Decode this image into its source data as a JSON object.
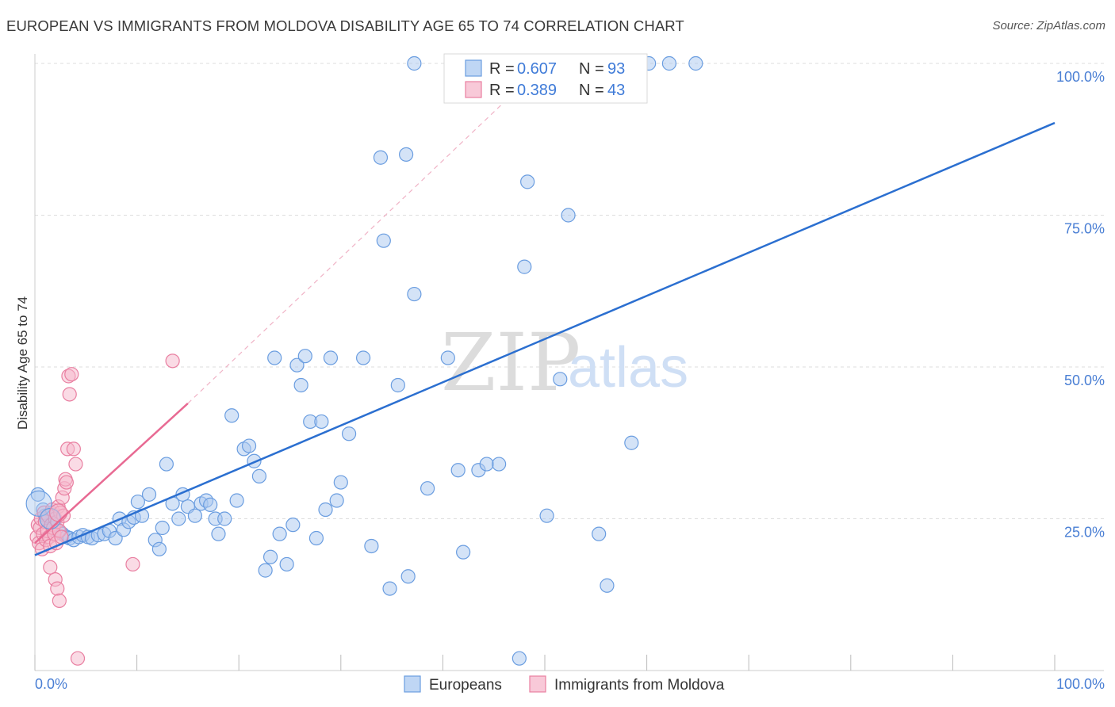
{
  "header": {
    "title": "EUROPEAN VS IMMIGRANTS FROM MOLDOVA DISABILITY AGE 65 TO 74 CORRELATION CHART",
    "source": "Source: ZipAtlas.com"
  },
  "watermark": {
    "zip": "ZIP",
    "atlas": "atlas"
  },
  "colors": {
    "blue_fill": "#a9c8f0",
    "blue_stroke": "#6a9de0",
    "blue_line": "#2b6fd0",
    "pink_fill": "#f6b7cb",
    "pink_stroke": "#e97fa1",
    "pink_line": "#e86a93",
    "tick_text": "#4a7fd4",
    "grid": "#dddddd"
  },
  "legend": {
    "rows": [
      {
        "r_label": "R =",
        "r_value": "0.607",
        "n_label": "N =",
        "n_value": "93"
      },
      {
        "r_label": "R =",
        "r_value": "0.389",
        "n_label": "N =",
        "n_value": "43"
      }
    ]
  },
  "chart_data": {
    "type": "scatter",
    "title": "EUROPEAN VS IMMIGRANTS FROM MOLDOVA DISABILITY AGE 65 TO 74 CORRELATION CHART",
    "xlabel": "",
    "ylabel": "Disability Age 65 to 74",
    "xlim": [
      0,
      100
    ],
    "ylim": [
      0,
      100
    ],
    "x_tick_labels": [
      "0.0%",
      "100.0%"
    ],
    "y_ticks": [
      {
        "value": 25,
        "label": "25.0%"
      },
      {
        "value": 50,
        "label": "50.0%"
      },
      {
        "value": 75,
        "label": "75.0%"
      },
      {
        "value": 100,
        "label": "100.0%"
      }
    ],
    "grid": true,
    "legend_position": "top-center",
    "series": [
      {
        "name": "Europeans",
        "color": "#6a9de0",
        "r": 0.607,
        "n": 93,
        "trendline": {
          "x": [
            0,
            100
          ],
          "y": [
            19.0,
            90.2
          ]
        },
        "points": [
          [
            0.3,
            29.0
          ],
          [
            0.8,
            26.5
          ],
          [
            1.0,
            25.5
          ],
          [
            1.3,
            24.8
          ],
          [
            1.6,
            26.0
          ],
          [
            1.9,
            24.0
          ],
          [
            2.3,
            23.0
          ],
          [
            2.7,
            22.5
          ],
          [
            3.1,
            22.0
          ],
          [
            3.4,
            21.8
          ],
          [
            3.8,
            21.5
          ],
          [
            4.3,
            22.0
          ],
          [
            4.7,
            22.3
          ],
          [
            5.2,
            22.0
          ],
          [
            5.6,
            21.8
          ],
          [
            6.2,
            22.3
          ],
          [
            6.8,
            22.5
          ],
          [
            7.3,
            23.0
          ],
          [
            7.9,
            21.8
          ],
          [
            8.3,
            25.0
          ],
          [
            8.7,
            23.2
          ],
          [
            9.2,
            24.5
          ],
          [
            9.7,
            25.2
          ],
          [
            10.1,
            27.8
          ],
          [
            10.5,
            25.5
          ],
          [
            11.2,
            29.0
          ],
          [
            11.8,
            21.5
          ],
          [
            12.2,
            20.0
          ],
          [
            12.5,
            23.5
          ],
          [
            12.9,
            34.0
          ],
          [
            13.5,
            27.5
          ],
          [
            14.1,
            25.0
          ],
          [
            14.5,
            29.0
          ],
          [
            15.0,
            27.0
          ],
          [
            15.7,
            25.5
          ],
          [
            16.3,
            27.5
          ],
          [
            16.8,
            28.0
          ],
          [
            17.2,
            27.3
          ],
          [
            17.7,
            25.0
          ],
          [
            18.0,
            22.5
          ],
          [
            18.6,
            25.0
          ],
          [
            19.3,
            42.0
          ],
          [
            19.8,
            28.0
          ],
          [
            20.5,
            36.5
          ],
          [
            21.0,
            37.0
          ],
          [
            21.5,
            34.5
          ],
          [
            22.0,
            32.0
          ],
          [
            22.6,
            16.5
          ],
          [
            23.1,
            18.7
          ],
          [
            23.5,
            51.5
          ],
          [
            24.0,
            22.5
          ],
          [
            24.7,
            17.5
          ],
          [
            25.3,
            24.0
          ],
          [
            25.7,
            50.3
          ],
          [
            26.1,
            47.0
          ],
          [
            26.5,
            51.8
          ],
          [
            27.0,
            41.0
          ],
          [
            27.6,
            21.8
          ],
          [
            28.1,
            41.0
          ],
          [
            28.5,
            26.5
          ],
          [
            29.0,
            51.5
          ],
          [
            29.6,
            28.0
          ],
          [
            30.0,
            31.0
          ],
          [
            30.8,
            39.0
          ],
          [
            32.2,
            51.5
          ],
          [
            33.0,
            20.5
          ],
          [
            33.9,
            84.5
          ],
          [
            34.2,
            70.8
          ],
          [
            34.8,
            13.5
          ],
          [
            35.6,
            47.0
          ],
          [
            36.4,
            85.0
          ],
          [
            36.6,
            15.5
          ],
          [
            37.2,
            62.0
          ],
          [
            38.5,
            30.0
          ],
          [
            40.5,
            51.5
          ],
          [
            41.5,
            33.0
          ],
          [
            42.0,
            19.5
          ],
          [
            43.5,
            33.0
          ],
          [
            44.3,
            34.0
          ],
          [
            45.5,
            34.0
          ],
          [
            47.5,
            2.0
          ],
          [
            48.0,
            66.5
          ],
          [
            48.3,
            80.5
          ],
          [
            50.2,
            25.5
          ],
          [
            51.5,
            48.0
          ],
          [
            52.3,
            75.0
          ],
          [
            55.3,
            22.5
          ],
          [
            56.1,
            14.0
          ],
          [
            58.5,
            37.5
          ],
          [
            37.2,
            100.0
          ],
          [
            60.2,
            100.0
          ],
          [
            62.2,
            100.0
          ],
          [
            64.8,
            100.0
          ]
        ]
      },
      {
        "name": "Immigrants from Moldova",
        "color": "#e97fa1",
        "r": 0.389,
        "n": 43,
        "trendline": {
          "x": [
            0,
            15
          ],
          "y": [
            21.0,
            44.0
          ]
        },
        "trendline_extended": {
          "x": [
            15,
            50
          ],
          "y": [
            44.0,
            100.0
          ]
        },
        "points": [
          [
            0.2,
            22.0
          ],
          [
            0.3,
            24.0
          ],
          [
            0.4,
            21.0
          ],
          [
            0.5,
            23.5
          ],
          [
            0.6,
            25.0
          ],
          [
            0.7,
            20.0
          ],
          [
            0.8,
            22.5
          ],
          [
            0.9,
            26.0
          ],
          [
            1.0,
            24.5
          ],
          [
            1.1,
            21.5
          ],
          [
            1.2,
            23.0
          ],
          [
            1.3,
            25.5
          ],
          [
            1.4,
            22.0
          ],
          [
            1.5,
            20.5
          ],
          [
            1.6,
            24.0
          ],
          [
            1.7,
            26.5
          ],
          [
            1.8,
            23.5
          ],
          [
            1.9,
            22.5
          ],
          [
            2.0,
            25.0
          ],
          [
            2.1,
            21.0
          ],
          [
            2.2,
            24.5
          ],
          [
            2.3,
            27.0
          ],
          [
            2.4,
            23.0
          ],
          [
            2.5,
            26.0
          ],
          [
            2.6,
            22.0
          ],
          [
            2.7,
            28.5
          ],
          [
            2.8,
            25.5
          ],
          [
            2.9,
            30.0
          ],
          [
            3.0,
            31.5
          ],
          [
            3.1,
            31.0
          ],
          [
            3.2,
            36.5
          ],
          [
            3.3,
            48.5
          ],
          [
            3.4,
            45.5
          ],
          [
            3.6,
            48.8
          ],
          [
            3.8,
            36.5
          ],
          [
            4.0,
            34.0
          ],
          [
            1.5,
            17.0
          ],
          [
            2.0,
            15.0
          ],
          [
            2.2,
            13.5
          ],
          [
            2.4,
            11.5
          ],
          [
            4.2,
            2.0
          ],
          [
            9.6,
            17.5
          ],
          [
            13.5,
            51.0
          ]
        ]
      }
    ]
  },
  "bottom_legend": {
    "items": [
      {
        "label": "Europeans"
      },
      {
        "label": "Immigrants from Moldova"
      }
    ]
  }
}
